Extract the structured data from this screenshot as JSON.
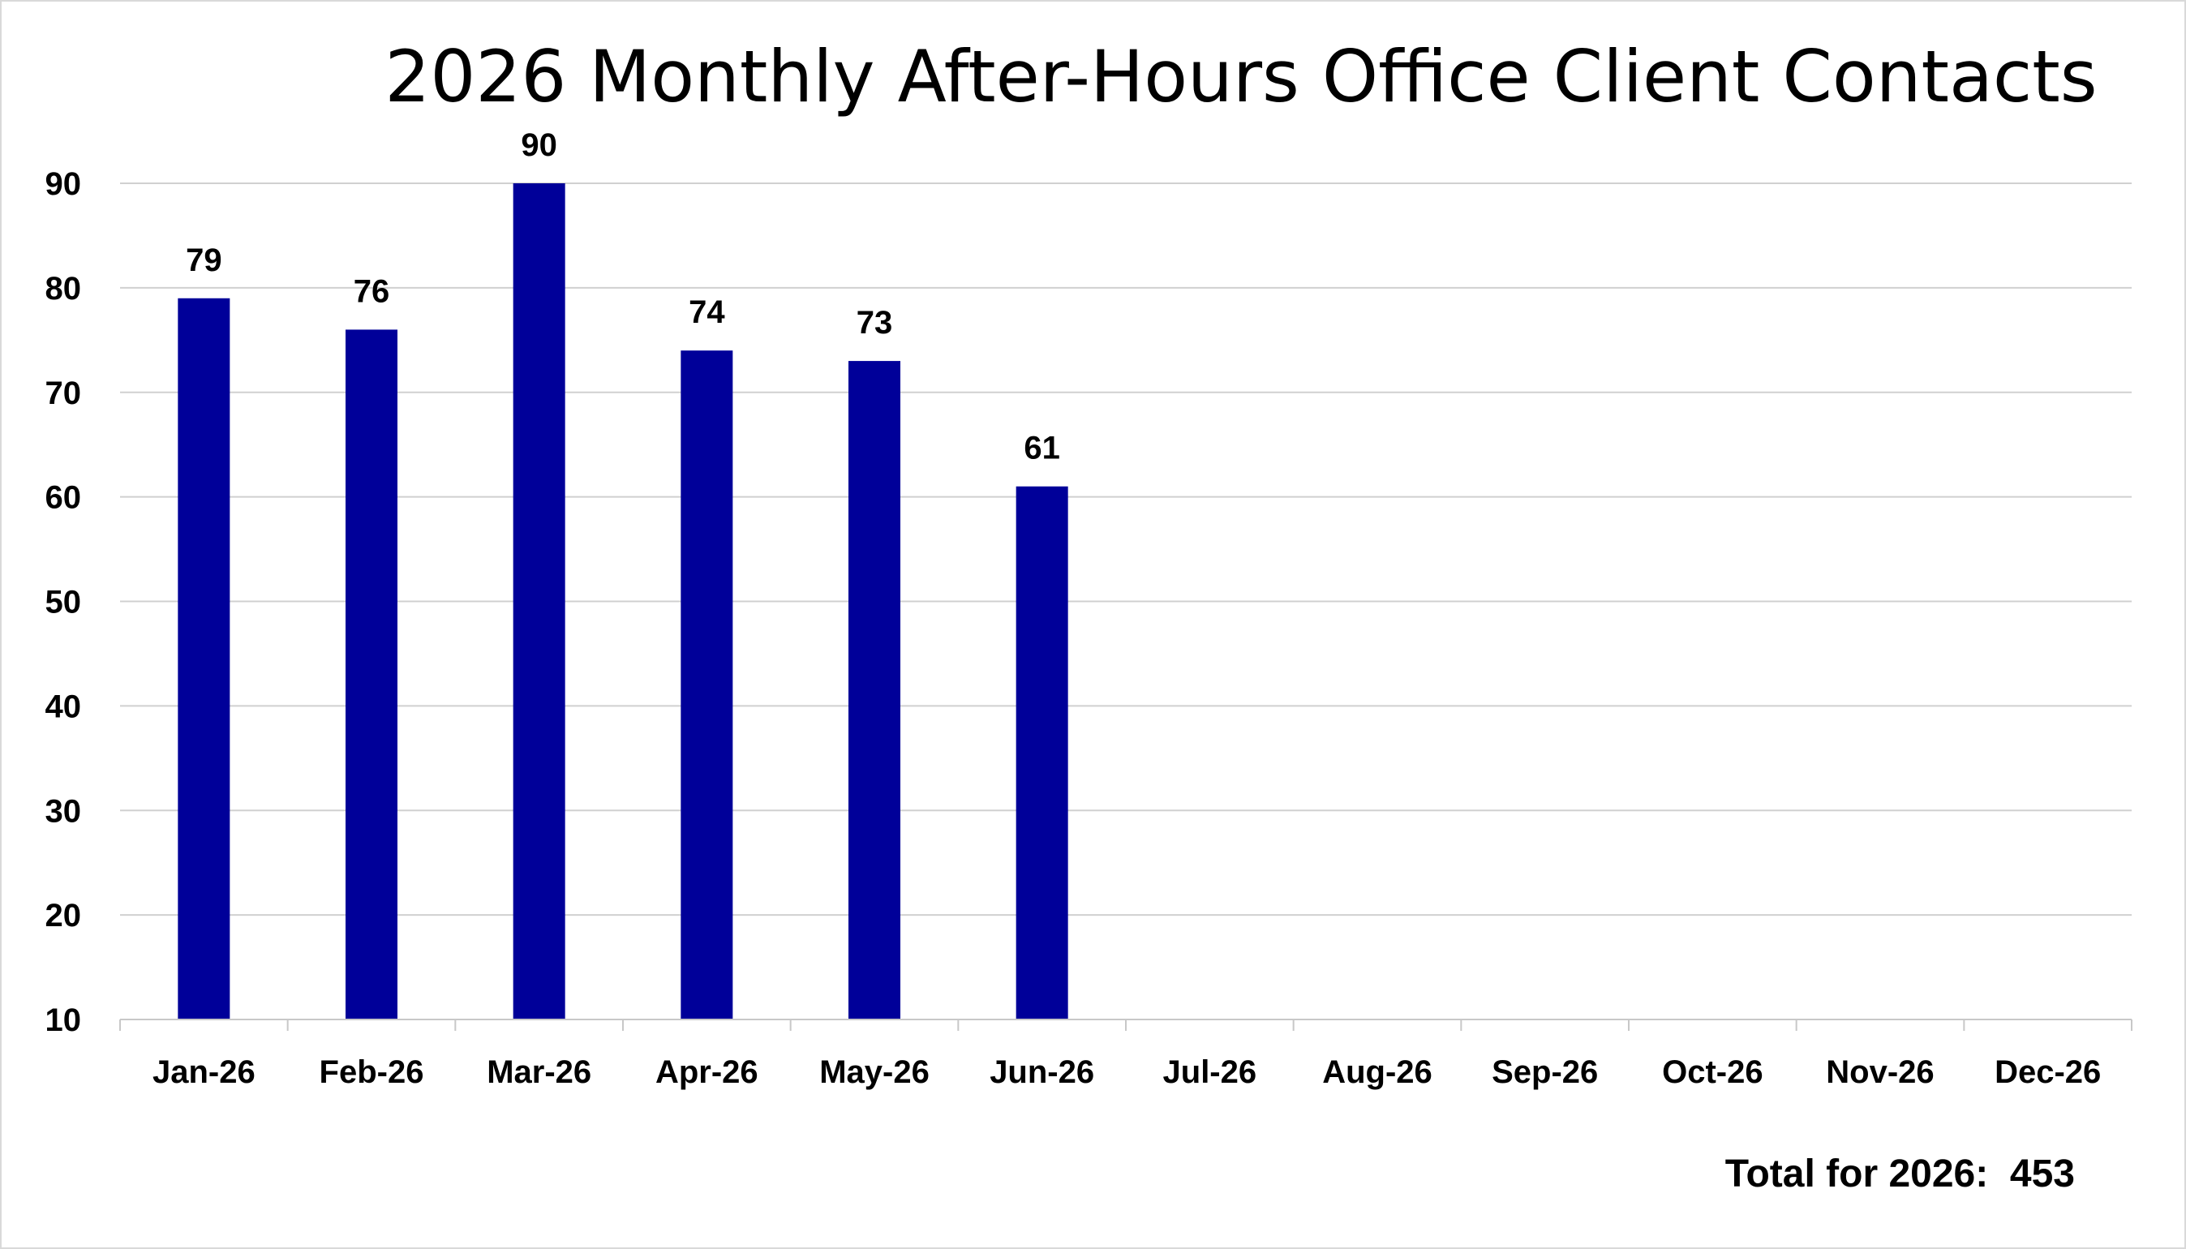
{
  "chart_data": {
    "type": "bar",
    "title": "2026 Monthly After-Hours Office Client Contacts",
    "categories": [
      "Jan-26",
      "Feb-26",
      "Mar-26",
      "Apr-26",
      "May-26",
      "Jun-26",
      "Jul-26",
      "Aug-26",
      "Sep-26",
      "Oct-26",
      "Nov-26",
      "Dec-26"
    ],
    "values": [
      79,
      76,
      90,
      74,
      73,
      61,
      null,
      null,
      null,
      null,
      null,
      null
    ],
    "xlabel": "",
    "ylabel": "",
    "ylim": [
      10,
      90
    ],
    "yticks": [
      10,
      20,
      30,
      40,
      50,
      60,
      70,
      80,
      90
    ],
    "grid": true,
    "legend": "none",
    "bar_color": "#000099",
    "footer": "Total for 2026:  453"
  }
}
